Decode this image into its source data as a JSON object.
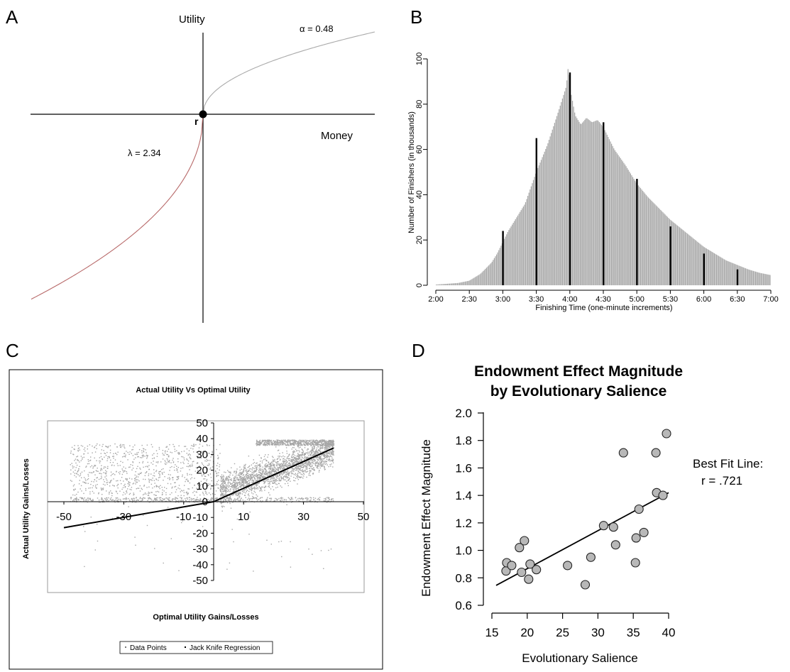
{
  "panels": {
    "a": {
      "letter": "A",
      "utility": "Utility",
      "money": "Money",
      "ref": "r",
      "alpha": "α = 0.48",
      "lambda": "λ = 2.34"
    },
    "b": {
      "letter": "B"
    },
    "c": {
      "letter": "C"
    },
    "d": {
      "letter": "D"
    }
  },
  "chart_data": [
    {
      "type": "line",
      "panel": "A",
      "ylabel": "Utility",
      "xlabel": "Money",
      "reference_point_label": "r",
      "annotations": [
        "α = 0.48",
        "λ = 2.34"
      ],
      "parameters": {
        "alpha": 0.48,
        "lambda": 2.34
      },
      "curve_colors": {
        "gains": "#aaaaaa",
        "losses": "#b86a6a"
      }
    },
    {
      "type": "bar",
      "panel": "B",
      "ylabel": "Number of Finishers (in thousands)",
      "xlabel": "Finishing Time (one-minute increments)",
      "ylim": [
        0,
        100
      ],
      "yticks": [
        "0",
        "20",
        "40",
        "60",
        "80",
        "100"
      ],
      "xticks": [
        "2:00",
        "2:30",
        "3:00",
        "3:30",
        "4:00",
        "4:30",
        "5:00",
        "5:30",
        "6:00",
        "6:30",
        "7:00"
      ],
      "x_range_minutes": [
        120,
        420
      ],
      "envelope": {
        "minutes": [
          120,
          140,
          150,
          160,
          170,
          175,
          180,
          185,
          190,
          200,
          210,
          220,
          230,
          237,
          239,
          240,
          245,
          250,
          255,
          260,
          265,
          270,
          280,
          290,
          300,
          310,
          320,
          330,
          340,
          350,
          360,
          370,
          380,
          390,
          400,
          410,
          420
        ],
        "values": [
          0.3,
          1,
          2,
          5,
          10,
          14,
          19,
          24,
          28,
          36,
          50,
          62,
          77,
          88,
          98,
          88,
          75,
          71,
          74,
          72,
          73,
          70,
          60,
          53,
          45,
          39,
          34,
          29,
          25,
          21,
          17,
          14,
          11,
          9,
          7,
          5.5,
          4.5
        ]
      },
      "spikes": [
        {
          "label": "3:00",
          "value": 24
        },
        {
          "label": "3:30",
          "value": 65
        },
        {
          "label": "4:00",
          "value": 94
        },
        {
          "label": "4:30",
          "value": 72
        },
        {
          "label": "5:00",
          "value": 47
        },
        {
          "label": "5:30",
          "value": 26
        },
        {
          "label": "6:00",
          "value": 14
        },
        {
          "label": "6:30",
          "value": 7
        }
      ],
      "colors": {
        "bars": "#a8a8a8",
        "spikes": "#000000"
      }
    },
    {
      "type": "scatter",
      "panel": "C",
      "title": "Actual Utility Vs Optimal Utility",
      "xlabel": "Optimal Utility Gains/Losses",
      "ylabel": "Actual Utility Gains/Losses",
      "xlim": [
        -50,
        50
      ],
      "ylim": [
        -50,
        50
      ],
      "xticks": [
        "-50",
        "-30",
        "-10",
        "10",
        "30",
        "50"
      ],
      "yticks": [
        "50",
        "40",
        "30",
        "20",
        "10",
        "0",
        "-10",
        "-20",
        "-30",
        "-40",
        "-50"
      ],
      "legend": [
        "Data Points",
        "Jack Knife Regression"
      ],
      "regression_line": [
        [
          -50,
          -16.5
        ],
        [
          0,
          0
        ],
        [
          40,
          34
        ]
      ],
      "points_note": "thousands of gray points, dense for x in 0..40, y in 0..40",
      "colors": {
        "points": "#a6a6a6",
        "regression": "#000000"
      }
    },
    {
      "type": "scatter",
      "panel": "D",
      "title": [
        "Endowment Effect Magnitude",
        "by Evolutionary Salience"
      ],
      "xlabel": "Evolutionary Salience",
      "ylabel": "Endowment Effect Magnitude",
      "xlim": [
        15,
        40
      ],
      "ylim": [
        0.6,
        2.0
      ],
      "xticks": [
        "15",
        "20",
        "25",
        "30",
        "35",
        "40"
      ],
      "yticks": [
        "0.6",
        "0.8",
        "1.0",
        "1.2",
        "1.4",
        "1.6",
        "1.8",
        "2.0"
      ],
      "annotation": [
        "Best Fit Line:",
        "r = .721"
      ],
      "points": [
        [
          17.0,
          0.85
        ],
        [
          17.1,
          0.91
        ],
        [
          17.8,
          0.89
        ],
        [
          18.9,
          1.02
        ],
        [
          19.2,
          0.84
        ],
        [
          19.6,
          1.07
        ],
        [
          20.2,
          0.79
        ],
        [
          20.4,
          0.9
        ],
        [
          21.3,
          0.86
        ],
        [
          25.7,
          0.89
        ],
        [
          28.2,
          0.75
        ],
        [
          29.0,
          0.95
        ],
        [
          30.8,
          1.18
        ],
        [
          32.2,
          1.17
        ],
        [
          32.5,
          1.04
        ],
        [
          33.6,
          1.71
        ],
        [
          35.3,
          0.91
        ],
        [
          35.4,
          1.09
        ],
        [
          35.8,
          1.3
        ],
        [
          36.5,
          1.13
        ],
        [
          38.2,
          1.71
        ],
        [
          38.3,
          1.42
        ],
        [
          39.2,
          1.4
        ],
        [
          39.7,
          1.85
        ]
      ],
      "fit_line": [
        [
          15.6,
          0.745
        ],
        [
          40,
          1.42
        ]
      ],
      "colors": {
        "points": "#b8b8b8",
        "outline": "#222222",
        "line": "#000000"
      }
    }
  ]
}
